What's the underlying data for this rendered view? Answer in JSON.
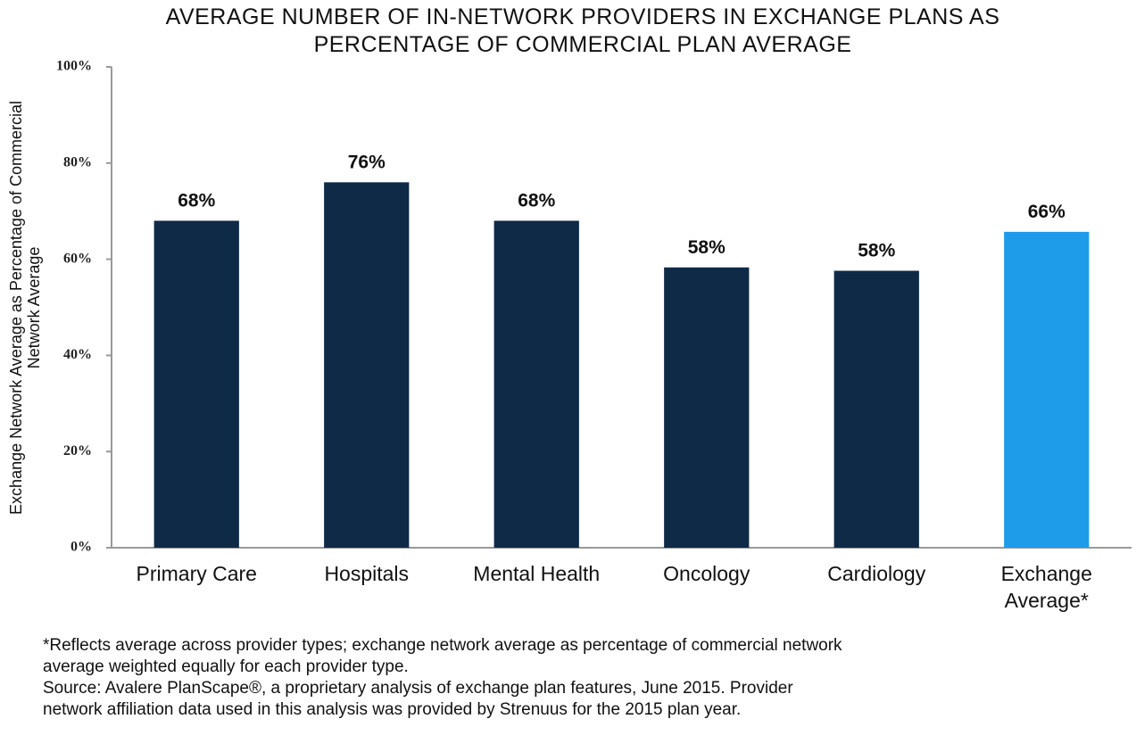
{
  "chart_data": {
    "type": "bar",
    "title": "AVERAGE NUMBER OF IN-NETWORK PROVIDERS IN EXCHANGE PLANS AS PERCENTAGE OF COMMERCIAL PLAN AVERAGE",
    "y_label": "Exchange Network Average as Percentage of Commercial Network Average",
    "categories": [
      "Primary Care",
      "Hospitals",
      "Mental Health",
      "Oncology",
      "Cardiology",
      "Exchange Average*"
    ],
    "values": [
      68,
      76,
      68,
      58.3,
      57.6,
      65.7
    ],
    "value_labels": [
      "68%",
      "76%",
      "68%",
      "58%",
      "58%",
      "66%"
    ],
    "colors": [
      "#0f2a47",
      "#0f2a47",
      "#0f2a47",
      "#0f2a47",
      "#0f2a47",
      "#1e9be9"
    ],
    "ylim": [
      0,
      100
    ],
    "yticks": [
      {
        "value": 0,
        "label": "0%"
      },
      {
        "value": 20,
        "label": "20%"
      },
      {
        "value": 40,
        "label": "40%"
      },
      {
        "value": 60,
        "label": "60%"
      },
      {
        "value": 80,
        "label": "80%"
      },
      {
        "value": 100,
        "label": "100%"
      }
    ],
    "grid": false,
    "footnote": "*Reflects average across provider types; exchange network average as percentage of commercial network average weighted equally for each provider type.",
    "source": "Source: Avalere PlanScape®, a proprietary analysis of exchange plan features, June 2015. Provider network affiliation data used in this analysis was provided by Strenuus for the 2015 plan year."
  }
}
